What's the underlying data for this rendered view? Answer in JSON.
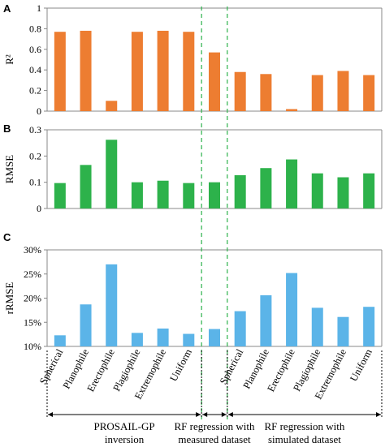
{
  "chart_data": [
    {
      "type": "bar",
      "panel_label": "A",
      "ylabel": "R²",
      "ylim": [
        0,
        1
      ],
      "yticks": [
        "0",
        "0.2",
        "0.4",
        "0.6",
        "0.8",
        "1"
      ],
      "color": "#ED7D31",
      "grid": false,
      "values": [
        0.77,
        0.78,
        0.1,
        0.77,
        0.78,
        0.77,
        0.57,
        0.38,
        0.36,
        0.02,
        0.35,
        0.39,
        0.35
      ]
    },
    {
      "type": "bar",
      "panel_label": "B",
      "ylabel": "RMSE",
      "ylim": [
        0,
        0.3
      ],
      "yticks": [
        "0",
        "0.1",
        "0.2",
        "0.3"
      ],
      "color": "#2DB24B",
      "grid": false,
      "values": [
        0.097,
        0.166,
        0.262,
        0.1,
        0.106,
        0.097,
        0.1,
        0.127,
        0.154,
        0.187,
        0.134,
        0.119,
        0.134
      ]
    },
    {
      "type": "bar",
      "panel_label": "C",
      "ylabel": "rRMSE",
      "ylim": [
        10,
        30
      ],
      "yticks": [
        "10%",
        "15%",
        "20%",
        "25%",
        "30%"
      ],
      "color": "#5BB4E8",
      "grid": false,
      "values": [
        12.3,
        18.7,
        27.0,
        12.8,
        13.7,
        12.6,
        13.6,
        17.3,
        20.6,
        25.2,
        18.0,
        16.1,
        18.2
      ]
    }
  ],
  "categories": [
    "Spherical",
    "Planophile",
    "Erectophile",
    "Plagiophile",
    "Extremophile",
    "Uniform",
    "",
    "Spherical",
    "Planophile",
    "Erectophile",
    "Plagiophile",
    "Extremophile",
    "Uniform"
  ],
  "groups": [
    {
      "lines": [
        "PROSAIL-GP",
        "inversion"
      ],
      "from": 0,
      "to": 5
    },
    {
      "lines": [
        "RF regression with",
        "measured dataset"
      ],
      "from": 6,
      "to": 6
    },
    {
      "lines": [
        "RF regression with",
        "simulated dataset"
      ],
      "from": 7,
      "to": 12
    }
  ],
  "divider_color": "#2DB24B"
}
